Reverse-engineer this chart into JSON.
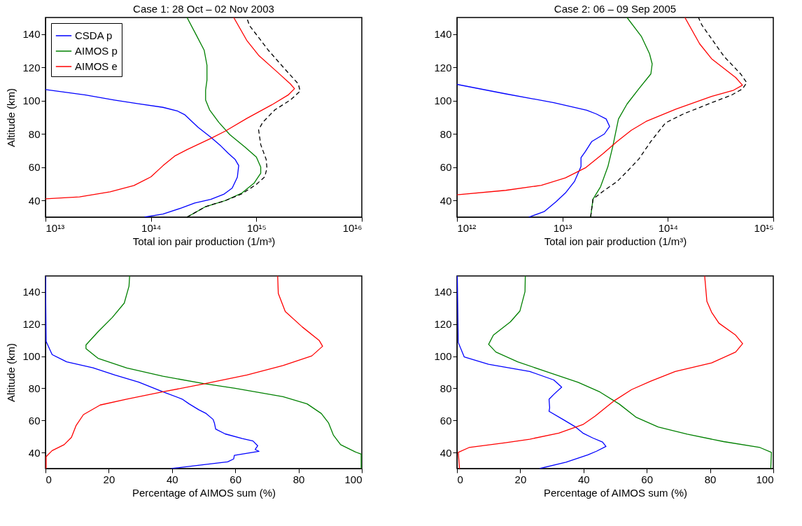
{
  "chart_data": [
    {
      "type": "line",
      "title": "Case 1: 28 Oct – 02 Nov 2003",
      "xlabel": "Total ion pair production (1/m³)",
      "ylabel": "Altitude (km)",
      "log": "x",
      "grid": false,
      "legend": "top left",
      "xlim": [
        10000000000000.0,
        1e+16
      ],
      "xticks": [
        {
          "value": 10000000000000.0,
          "label": "10¹³"
        },
        {
          "value": 100000000000000.0,
          "label": "10¹⁴"
        },
        {
          "value": 1000000000000000.0,
          "label": "10¹⁵"
        },
        {
          "value": 1e+16,
          "label": "10¹⁶"
        }
      ],
      "ylim": [
        30,
        150
      ],
      "yticks": [
        40,
        60,
        80,
        100,
        120,
        140
      ],
      "series": [
        {
          "name": "CSDA p",
          "color": "#0000ff",
          "x": [
            87000000000000.0,
            130000000000000.0,
            195000000000000.0,
            260000000000000.0,
            370000000000000.0,
            490000000000000.0,
            590000000000000.0,
            660000000000000.0,
            680000000000000.0,
            630000000000000.0,
            540000000000000.0,
            460000000000000.0,
            370000000000000.0,
            280000000000000.0,
            210000000000000.0,
            180000000000000.0,
            130000000000000.0,
            76000000000000.0,
            45000000000000.0,
            24000000000000.0,
            10000000000000.0
          ],
          "values": [
            30,
            31.8,
            35.5,
            38.5,
            40.7,
            43.7,
            47.5,
            54,
            61,
            64.6,
            68.4,
            72.8,
            78,
            84,
            91.5,
            93.7,
            96,
            98.2,
            100.4,
            103.4,
            106.7
          ]
        },
        {
          "name": "AIMOS p",
          "color": "#008000",
          "x": [
            220000000000000.0,
            330000000000000.0,
            510000000000000.0,
            730000000000000.0,
            950000000000000.0,
            1100000000000000.0,
            1100000000000000.0,
            1000000000000000.0,
            780000000000000.0,
            560000000000000.0,
            440000000000000.0,
            360000000000000.0,
            330000000000000.0,
            330000000000000.0,
            340000000000000.0,
            340000000000000.0,
            320000000000000.0,
            270000000000000.0,
            220000000000000.0
          ],
          "values": [
            30,
            36.3,
            40,
            44.5,
            50.4,
            56.4,
            60.1,
            66.1,
            72.1,
            79.6,
            87,
            94.5,
            100.4,
            106.4,
            112.4,
            121.3,
            130.3,
            139.3,
            150
          ]
        },
        {
          "name": "AIMOS e",
          "color": "#ff0000",
          "x": [
            10000000000000.0,
            21000000000000.0,
            41000000000000.0,
            69000000000000.0,
            100000000000000.0,
            130000000000000.0,
            170000000000000.0,
            220000000000000.0,
            370000000000000.0,
            510000000000000.0,
            810000000000000.0,
            1400000000000000.0,
            2000000000000000.0,
            2300000000000000.0,
            2100000000000000.0,
            1600000000000000.0,
            1050000000000000.0,
            810000000000000.0,
            610000000000000.0
          ],
          "values": [
            41,
            42.2,
            45.2,
            49,
            54.2,
            60.9,
            66.9,
            70.6,
            77.3,
            81.8,
            89.3,
            97.5,
            103.4,
            107.2,
            110.1,
            116.9,
            127.3,
            136.3,
            150
          ]
        },
        {
          "color": "#000000",
          "line_style": "dashed",
          "x": [
            220000000000000.0,
            330000000000000.0,
            510000000000000.0,
            730000000000000.0,
            1000000000000000.0,
            1200000000000000.0,
            1260000000000000.0,
            1240000000000000.0,
            1100000000000000.0,
            1050000000000000.0,
            1150000000000000.0,
            1500000000000000.0,
            2100000000000000.0,
            2600000000000000.0,
            2500000000000000.0,
            1900000000000000.0,
            1300000000000000.0,
            860000000000000.0,
            810000000000000.0
          ],
          "values": [
            30,
            36.3,
            40,
            44,
            49.7,
            54.2,
            59.4,
            64.6,
            73.6,
            82.5,
            87,
            94.5,
            100.4,
            105.7,
            110.1,
            118.4,
            130.3,
            145.2,
            150
          ]
        }
      ]
    },
    {
      "type": "line",
      "title": "Case 2: 06 – 09 Sep 2005",
      "xlabel": "Total ion pair production (1/m³)",
      "log": "x",
      "grid": false,
      "xlim": [
        1000000000000.0,
        1000000000000000.0
      ],
      "xticks": [
        {
          "value": 1000000000000.0,
          "label": "10¹²"
        },
        {
          "value": 10000000000000.0,
          "label": "10¹³"
        },
        {
          "value": 100000000000000.0,
          "label": "10¹⁴"
        },
        {
          "value": 1000000000000000.0,
          "label": "10¹⁵"
        }
      ],
      "ylim": [
        30,
        150
      ],
      "yticks": [
        40,
        60,
        80,
        100,
        120,
        140
      ],
      "series": [
        {
          "color": "#0000ff",
          "x": [
            4800000000000.0,
            6700000000000.0,
            8700000000000.0,
            10700000000000.0,
            13000000000000.0,
            15000000000000.0,
            15000000000000.0,
            16500000000000.0,
            19000000000000.0,
            25000000000000.0,
            28000000000000.0,
            26000000000000.0,
            21000000000000.0,
            17000000000000.0,
            8300000000000.0,
            2900000000000.0,
            1000000000000.0
          ],
          "values": [
            30,
            33.3,
            39.3,
            44.6,
            51.4,
            60.4,
            65.7,
            69.4,
            75.5,
            80,
            84.5,
            89,
            92,
            94.3,
            98.8,
            104.1,
            109.8
          ]
        },
        {
          "color": "#008000",
          "x": [
            18500000000000.0,
            19500000000000.0,
            23000000000000.0,
            27000000000000.0,
            30000000000000.0,
            34000000000000.0,
            41000000000000.0,
            53000000000000.0,
            69000000000000.0,
            71000000000000.0,
            67000000000000.0,
            56000000000000.0,
            41000000000000.0
          ],
          "values": [
            30,
            40.8,
            48.3,
            60.4,
            72.4,
            89,
            98,
            107.1,
            116.1,
            122.1,
            128.2,
            138.7,
            150
          ]
        },
        {
          "color": "#ff0000",
          "x": [
            1000000000000.0,
            2900000000000.0,
            6300000000000.0,
            10700000000000.0,
            16500000000000.0,
            24000000000000.0,
            33000000000000.0,
            45000000000000.0,
            62000000000000.0,
            120000000000000.0,
            260000000000000.0,
            420000000000000.0,
            510000000000000.0,
            440000000000000.0,
            260000000000000.0,
            200000000000000.0,
            145000000000000.0
          ],
          "values": [
            43.4,
            46.1,
            49.1,
            53.6,
            59.6,
            67.9,
            75.5,
            82.2,
            87.5,
            95,
            102.6,
            106.3,
            109.3,
            113.9,
            125.2,
            134.2,
            150
          ]
        },
        {
          "color": "#000000",
          "line_style": "dashed",
          "x": [
            18500000000000.0,
            19500000000000.0,
            24000000000000.0,
            33000000000000.0,
            41000000000000.0,
            53000000000000.0,
            69000000000000.0,
            95000000000000.0,
            140000000000000.0,
            260000000000000.0,
            400000000000000.0,
            510000000000000.0,
            560000000000000.0,
            490000000000000.0,
            340000000000000.0,
            210000000000000.0,
            195000000000000.0
          ],
          "values": [
            30,
            40.8,
            45.3,
            51.4,
            57.4,
            64.9,
            75.5,
            86.7,
            92,
            98.8,
            103.3,
            107.1,
            110.8,
            116.1,
            126.7,
            145.5,
            150
          ]
        }
      ]
    },
    {
      "type": "line",
      "xlabel": "Percentage of AIMOS sum (%)",
      "ylabel": "Altitude (km)",
      "grid": false,
      "xlim": [
        0,
        100
      ],
      "xticks": [
        0,
        20,
        40,
        60,
        80,
        100
      ],
      "ylim": [
        30,
        150
      ],
      "yticks": [
        40,
        60,
        80,
        100,
        120,
        140
      ],
      "series": [
        {
          "color": "#0000ff",
          "x": [
            39.7,
            49.2,
            57.6,
            59.5,
            59.7,
            67.5,
            66.3,
            67.1,
            65.6,
            62.2,
            56.8,
            53.8,
            53.4,
            53.0,
            50.8,
            48.5,
            45.4,
            43.2,
            37.1,
            29.5,
            21.9,
            15.0,
            6.7,
            2.1,
            0.2,
            0
          ],
          "values": [
            30,
            32.2,
            34.2,
            36,
            38.2,
            40.7,
            41.9,
            44.2,
            47.2,
            48.7,
            51.6,
            54.6,
            58.4,
            60.6,
            64.3,
            66.6,
            70.3,
            73.3,
            77.8,
            83.8,
            88.3,
            92.8,
            96.5,
            101,
            109.2,
            150
          ]
        },
        {
          "color": "#008000",
          "x": [
            99.8,
            99.8,
            97.9,
            93.3,
            91.0,
            89.5,
            87.2,
            82.7,
            75.1,
            59.9,
            50,
            37.1,
            25.7,
            16.6,
            12.8,
            12.8,
            16.6,
            21.1,
            24.9,
            26.4,
            26.6
          ],
          "values": [
            30,
            39,
            40.4,
            44.9,
            50.9,
            58.4,
            64.3,
            70.3,
            74.8,
            80,
            83,
            87.5,
            92.7,
            98.7,
            104.7,
            107,
            115.2,
            124.1,
            133.1,
            143.6,
            150
          ]
        },
        {
          "color": "#ff0000",
          "x": [
            0.2,
            0.2,
            2.1,
            5.9,
            8.2,
            9.7,
            12.0,
            17.3,
            25.7,
            37.1,
            50.0,
            63.7,
            75.1,
            84.2,
            87.6,
            86.5,
            81.2,
            75.8,
            73.6,
            73.4
          ],
          "values": [
            30,
            37.4,
            41.2,
            44.9,
            49.4,
            56.9,
            63.6,
            69.6,
            73.3,
            77.8,
            82.7,
            88.3,
            94.2,
            100.2,
            106.2,
            109.9,
            118.2,
            127.9,
            139.1,
            150
          ]
        }
      ]
    },
    {
      "type": "line",
      "xlabel": "Percentage of AIMOS sum (%)",
      "grid": false,
      "xlim": [
        0,
        100
      ],
      "xticks": [
        0,
        20,
        40,
        60,
        80,
        100
      ],
      "ylim": [
        30,
        150
      ],
      "yticks": [
        40,
        60,
        80,
        100,
        120,
        140
      ],
      "series": [
        {
          "color": "#0000ff",
          "x": [
            26.1,
            34.5,
            41.4,
            44.1,
            47.1,
            46.0,
            42.9,
            39.8,
            37.5,
            33.7,
            29.1,
            29.3,
            29.1,
            30.6,
            33.1,
            30.6,
            23.0,
            10.0,
            2.3,
            0.4,
            0.1
          ],
          "values": [
            30,
            34,
            38.6,
            40.8,
            43.8,
            46.5,
            49.1,
            52.1,
            55.9,
            60.4,
            65.7,
            67.9,
            73.2,
            76.2,
            80.7,
            85.2,
            90.5,
            95,
            99.5,
            108.6,
            150
          ]
        },
        {
          "color": "#008000",
          "x": [
            99.2,
            99.4,
            95.8,
            84.3,
            72.8,
            63.6,
            56.7,
            51.3,
            45.2,
            38.3,
            29.1,
            19.2,
            12.3,
            10.0,
            11.5,
            16.9,
            19.9,
            21.5,
            21.6
          ],
          "values": [
            30,
            40.1,
            43.1,
            46.8,
            51.4,
            55.9,
            61.9,
            70.2,
            77.7,
            83.7,
            89.8,
            96.5,
            102.6,
            107.4,
            113.1,
            121.4,
            128.2,
            140.2,
            150
          ]
        },
        {
          "color": "#ff0000",
          "x": [
            0.8,
            0.4,
            3.8,
            15.3,
            23.0,
            32.2,
            39.8,
            43.7,
            49.8,
            55.2,
            61.3,
            69.0,
            80.5,
            88.1,
            90.3,
            88.1,
            82.8,
            80.5,
            79.0,
            78.3
          ],
          "values": [
            30,
            40.1,
            43.1,
            46.1,
            48.3,
            52.1,
            57.4,
            62.7,
            72.4,
            79.2,
            84.5,
            90.5,
            95.8,
            102.6,
            107.8,
            113.1,
            120.6,
            127.4,
            134.2,
            150
          ]
        }
      ]
    }
  ]
}
